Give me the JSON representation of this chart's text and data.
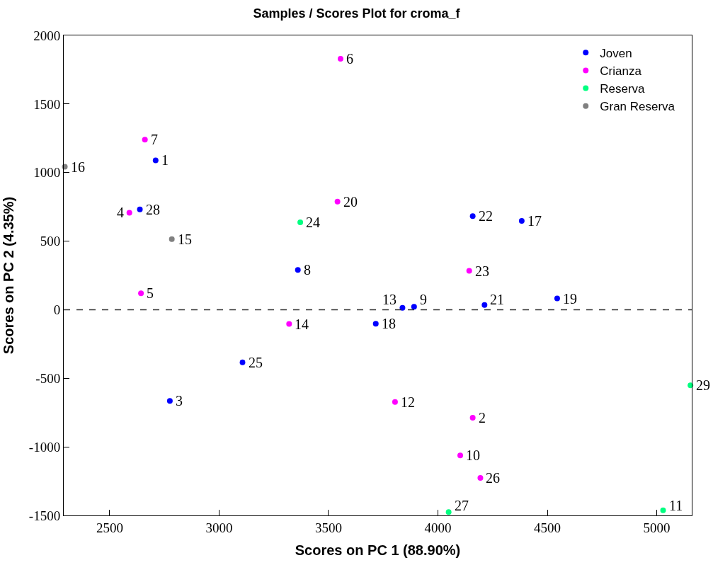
{
  "chart_data": {
    "type": "scatter",
    "title": "Samples / Scores Plot for croma_f",
    "xlabel": "Scores on PC 1 (88.90%)",
    "ylabel": "Scores on PC 2 (4.35%)",
    "xlim": [
      2290,
      5160
    ],
    "xticks": [
      2500,
      3000,
      3500,
      4000,
      4500,
      5000
    ],
    "ylim": [
      -1500,
      2000
    ],
    "yticks": [
      -1500,
      -1000,
      -500,
      0,
      500,
      1000,
      1500,
      2000
    ],
    "legend": "top right",
    "marker": "circle",
    "ref_lines": [
      {
        "axis": "y",
        "value": 0,
        "label": null,
        "color": "#333333",
        "line_style": "dashed"
      }
    ],
    "series": [
      {
        "name": "Joven",
        "color": "#0000ff",
        "x": [
          2710,
          2775,
          3360,
          3891,
          3838,
          4383,
          3716,
          4545,
          4213,
          4159,
          3107,
          2638
        ],
        "values": [
          1089,
          -665,
          290,
          21,
          14,
          647,
          -102,
          82,
          35,
          682,
          -384,
          731
        ]
      },
      {
        "name": "Crianza",
        "color": "#ff00ff",
        "x": [
          4159,
          2590,
          2643,
          3555,
          2661,
          4102,
          3804,
          3320,
          3541,
          4143,
          4194
        ],
        "values": [
          -788,
          707,
          120,
          1830,
          1240,
          -1062,
          -673,
          -104,
          788,
          283,
          -1227
        ]
      },
      {
        "name": "Reserva",
        "color": "#00ff80",
        "x": [
          5029,
          3371,
          4049,
          5154
        ],
        "values": [
          -1463,
          637,
          -1476,
          -552
        ]
      },
      {
        "name": "Gran Reserva",
        "color": "#808080",
        "x": [
          2784,
          2295
        ],
        "values": [
          514,
          1042
        ]
      }
    ],
    "annotations": [
      {
        "text": "1",
        "x": 2710,
        "y": 1089
      },
      {
        "text": "3",
        "x": 2775,
        "y": -665
      },
      {
        "text": "8",
        "x": 3360,
        "y": 290
      },
      {
        "text": "9",
        "x": 3891,
        "y": 21
      },
      {
        "text": "13",
        "x": 3838,
        "y": 14
      },
      {
        "text": "17",
        "x": 4383,
        "y": 647
      },
      {
        "text": "18",
        "x": 3716,
        "y": -102
      },
      {
        "text": "19",
        "x": 4545,
        "y": 82
      },
      {
        "text": "21",
        "x": 4213,
        "y": 35
      },
      {
        "text": "22",
        "x": 4159,
        "y": 682
      },
      {
        "text": "25",
        "x": 3107,
        "y": -384
      },
      {
        "text": "28",
        "x": 2638,
        "y": 731
      },
      {
        "text": "2",
        "x": 4159,
        "y": -788
      },
      {
        "text": "4",
        "x": 2590,
        "y": 707
      },
      {
        "text": "5",
        "x": 2643,
        "y": 120
      },
      {
        "text": "6",
        "x": 3555,
        "y": 1830
      },
      {
        "text": "7",
        "x": 2661,
        "y": 1240
      },
      {
        "text": "10",
        "x": 4102,
        "y": -1062
      },
      {
        "text": "12",
        "x": 3804,
        "y": -673
      },
      {
        "text": "14",
        "x": 3320,
        "y": -104
      },
      {
        "text": "20",
        "x": 3541,
        "y": 788
      },
      {
        "text": "23",
        "x": 4143,
        "y": 283
      },
      {
        "text": "26",
        "x": 4194,
        "y": -1227
      },
      {
        "text": "11",
        "x": 5029,
        "y": -1463
      },
      {
        "text": "24",
        "x": 3371,
        "y": 637
      },
      {
        "text": "27",
        "x": 4049,
        "y": -1476
      },
      {
        "text": "29",
        "x": 5154,
        "y": -552
      },
      {
        "text": "15",
        "x": 2784,
        "y": 514
      },
      {
        "text": "16",
        "x": 2295,
        "y": 1042
      }
    ]
  }
}
